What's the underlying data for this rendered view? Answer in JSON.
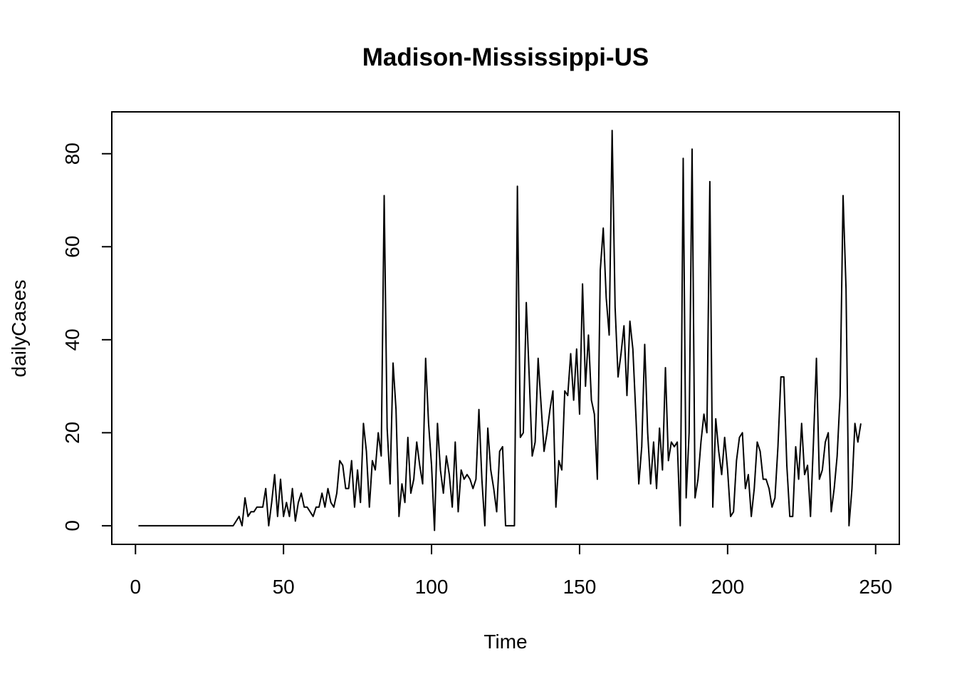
{
  "chart_data": {
    "type": "line",
    "title": "Madison-Mississippi-US",
    "xlabel": "Time",
    "ylabel": "dailyCases",
    "xlim": [
      -8,
      258
    ],
    "ylim": [
      -4,
      89
    ],
    "x_ticks": [
      0,
      50,
      100,
      150,
      200,
      250
    ],
    "y_ticks": [
      0,
      20,
      40,
      60,
      80
    ],
    "grid": false,
    "series": [
      {
        "x_start": 1,
        "values": [
          0,
          0,
          0,
          0,
          0,
          0,
          0,
          0,
          0,
          0,
          0,
          0,
          0,
          0,
          0,
          0,
          0,
          0,
          0,
          0,
          0,
          0,
          0,
          0,
          0,
          0,
          0,
          0,
          0,
          0,
          0,
          0,
          0,
          1,
          2,
          0,
          6,
          2,
          3,
          3,
          4,
          4,
          4,
          8,
          0,
          5,
          11,
          2,
          10,
          2,
          5,
          2,
          8,
          1,
          5,
          7,
          4,
          4,
          3,
          2,
          4,
          4,
          7,
          4,
          8,
          5,
          4,
          7,
          14,
          13,
          8,
          8,
          14,
          4,
          12,
          5,
          22,
          16,
          4,
          14,
          12,
          20,
          15,
          71,
          21,
          9,
          35,
          25,
          2,
          9,
          5,
          19,
          7,
          10,
          18,
          13,
          9,
          36,
          22,
          13,
          -1,
          22,
          12,
          7,
          15,
          11,
          4,
          18,
          3,
          12,
          10,
          11,
          10,
          8,
          10,
          25,
          10,
          0,
          21,
          12,
          8,
          3,
          16,
          17,
          0,
          0,
          0,
          0,
          73,
          19,
          20,
          48,
          32,
          15,
          18,
          36,
          26,
          16,
          20,
          25,
          29,
          4,
          14,
          12,
          29,
          28,
          37,
          27,
          38,
          24,
          52,
          30,
          41,
          27,
          24,
          10,
          55,
          64,
          49,
          41,
          85,
          47,
          32,
          37,
          43,
          28,
          44,
          38,
          24,
          9,
          17,
          39,
          20,
          9,
          18,
          8,
          21,
          12,
          34,
          14,
          18,
          17,
          18,
          0,
          79,
          6,
          20,
          81,
          6,
          10,
          18,
          24,
          20,
          74,
          4,
          23,
          16,
          11,
          19,
          12,
          2,
          3,
          14,
          19,
          20,
          8,
          11,
          2,
          8,
          18,
          16,
          10,
          10,
          8,
          4,
          6,
          17,
          32,
          32,
          13,
          2,
          2,
          17,
          10,
          22,
          11,
          13,
          2,
          18,
          36,
          10,
          12,
          18,
          20,
          3,
          8,
          15,
          28,
          71,
          51,
          0,
          8,
          22,
          18,
          22
        ]
      }
    ]
  }
}
